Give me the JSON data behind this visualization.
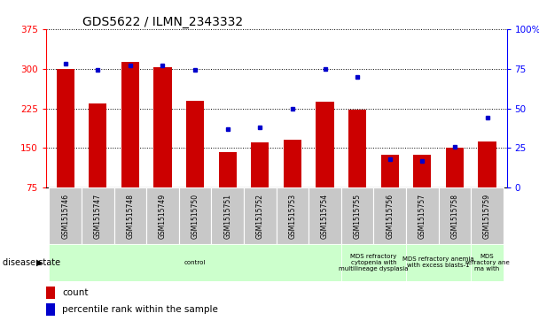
{
  "title": "GDS5622 / ILMN_2343332",
  "samples": [
    "GSM1515746",
    "GSM1515747",
    "GSM1515748",
    "GSM1515749",
    "GSM1515750",
    "GSM1515751",
    "GSM1515752",
    "GSM1515753",
    "GSM1515754",
    "GSM1515755",
    "GSM1515756",
    "GSM1515757",
    "GSM1515758",
    "GSM1515759"
  ],
  "counts": [
    300,
    235,
    312,
    302,
    240,
    142,
    160,
    165,
    238,
    222,
    138,
    137,
    150,
    162
  ],
  "percentile_ranks": [
    78,
    74,
    77,
    77,
    74,
    37,
    38,
    50,
    75,
    70,
    18,
    17,
    26,
    44
  ],
  "ylim_left": [
    75,
    375
  ],
  "ylim_right": [
    0,
    100
  ],
  "yticks_left": [
    75,
    150,
    225,
    300,
    375
  ],
  "yticks_right": [
    0,
    25,
    50,
    75,
    100
  ],
  "bar_color": "#cc0000",
  "dot_color": "#0000cc",
  "bg_color": "#ffffff",
  "disease_groups": [
    {
      "label": "control",
      "start": 0,
      "end": 9
    },
    {
      "label": "MDS refractory\ncytopenia with\nmultilineage dysplasia",
      "start": 9,
      "end": 11
    },
    {
      "label": "MDS refractory anemia\nwith excess blasts-1",
      "start": 11,
      "end": 13
    },
    {
      "label": "MDS\nrefractory ane\nma with",
      "start": 13,
      "end": 14
    }
  ],
  "disease_state_label": "disease state",
  "legend_count_label": "count",
  "legend_percentile_label": "percentile rank within the sample",
  "tick_bg_color": "#c8c8c8",
  "disease_bg_color": "#ccffcc",
  "bar_bottom": 75
}
